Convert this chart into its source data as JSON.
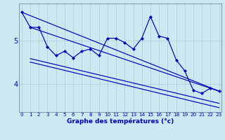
{
  "xlabel": "Graphe des températures (°c)",
  "hours": [
    0,
    1,
    2,
    3,
    4,
    5,
    6,
    7,
    8,
    9,
    10,
    11,
    12,
    13,
    14,
    15,
    16,
    17,
    18,
    19,
    20,
    21,
    22,
    23
  ],
  "temp_line": [
    5.65,
    5.3,
    5.3,
    4.85,
    4.65,
    4.75,
    4.6,
    4.75,
    4.8,
    4.65,
    5.05,
    5.05,
    4.95,
    4.8,
    5.05,
    5.55,
    5.1,
    5.05,
    4.55,
    4.3,
    3.85,
    3.78,
    3.9,
    3.83
  ],
  "straight_lines": [
    [
      1,
      5.3,
      23,
      3.83
    ],
    [
      0,
      5.65,
      23,
      3.83
    ],
    [
      1,
      4.58,
      23,
      3.55
    ],
    [
      1,
      4.5,
      23,
      3.45
    ]
  ],
  "bg_color": "#cce8f0",
  "line_color": "#0000bb",
  "grid_color": "#aaccd8",
  "axis_label_color": "#0000bb",
  "tick_label_color": "#0000bb",
  "ylim": [
    3.35,
    5.85
  ],
  "yticks": [
    4,
    5
  ],
  "xlim": [
    -0.3,
    23.3
  ],
  "marker_size": 2.2,
  "linewidth": 0.85,
  "xlabel_fontsize": 6.5,
  "xtick_fontsize": 5.2,
  "ytick_fontsize": 7.0
}
